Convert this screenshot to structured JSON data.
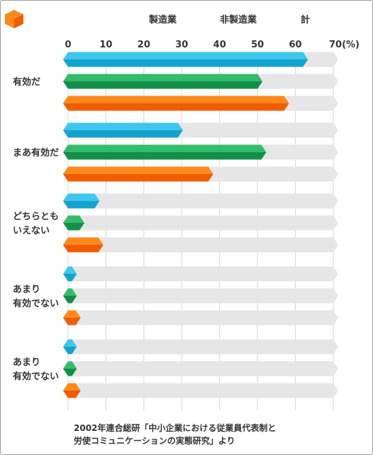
{
  "chart_data": {
    "type": "bar",
    "orientation": "horizontal",
    "xlim": [
      0,
      70
    ],
    "ticks": [
      "0",
      "10",
      "20",
      "30",
      "40",
      "50",
      "60",
      "70(%)"
    ],
    "categories": [
      [
        "有効だ"
      ],
      [
        "まあ有効だ"
      ],
      [
        "どちらとも",
        "いえない"
      ],
      [
        "あまり",
        "有効でない"
      ],
      [
        "あまり",
        "有効でない"
      ]
    ],
    "series": [
      {
        "name": "製造業",
        "values": [
          62,
          29,
          7,
          1,
          1
        ]
      },
      {
        "name": "非製造業",
        "values": [
          50,
          51,
          3,
          1,
          1
        ]
      },
      {
        "name": "計",
        "values": [
          57,
          37,
          8,
          2,
          2
        ]
      }
    ],
    "track_color": "#e6e6e6",
    "colors": {
      "製造業": {
        "top": "#3ec6ec",
        "bottom": "#13a3cf"
      },
      "非製造業": {
        "top": "#33bd6b",
        "bottom": "#138f4a"
      },
      "計": {
        "top": "#ff8a1c",
        "bottom": "#f25c00"
      }
    },
    "legend_position": "top-right",
    "source": [
      "2002年連合総研「中小企業における従業員代表制と",
      "労使コミュニケーションの実態研究」より"
    ]
  }
}
